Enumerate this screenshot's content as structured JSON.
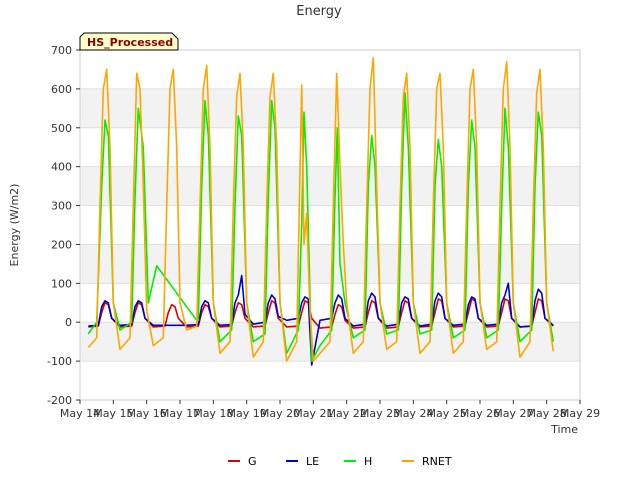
{
  "chart_data": {
    "type": "line",
    "title": "Energy",
    "xlabel": "Time",
    "ylabel": "Energy (W/m2)",
    "badge": "HS_Processed",
    "xlim": [
      14,
      29
    ],
    "ylim": [
      -200,
      700
    ],
    "x_ticks": [
      14,
      15,
      16,
      17,
      18,
      19,
      20,
      21,
      22,
      23,
      24,
      25,
      26,
      27,
      28,
      29
    ],
    "x_tick_labels": [
      "May 14",
      "May 15",
      "May 16",
      "May 17",
      "May 18",
      "May 19",
      "May 20",
      "May 21",
      "May 22",
      "May 23",
      "May 24",
      "May 25",
      "May 26",
      "May 27",
      "May 28",
      "May 29"
    ],
    "y_ticks": [
      -200,
      -100,
      0,
      100,
      200,
      300,
      400,
      500,
      600,
      700
    ],
    "y_tick_labels": [
      "-200",
      "-100",
      "0",
      "100",
      "200",
      "300",
      "400",
      "500",
      "600",
      "700"
    ],
    "legend_position": "bottom-center",
    "series": [
      {
        "name": "G",
        "color": "#dd0000",
        "x": [
          14.25,
          14.55,
          14.65,
          14.75,
          14.85,
          14.95,
          15.2,
          15.55,
          15.65,
          15.75,
          15.85,
          15.95,
          16.2,
          16.55,
          16.65,
          16.75,
          16.85,
          16.95,
          17.2,
          17.55,
          17.65,
          17.75,
          17.85,
          17.95,
          18.2,
          18.55,
          18.65,
          18.75,
          18.85,
          18.95,
          19.2,
          19.55,
          19.65,
          19.75,
          19.85,
          19.95,
          20.2,
          20.55,
          20.65,
          20.75,
          20.85,
          20.95,
          21.2,
          21.55,
          21.65,
          21.75,
          21.85,
          21.95,
          22.2,
          22.55,
          22.65,
          22.75,
          22.85,
          22.95,
          23.2,
          23.55,
          23.65,
          23.75,
          23.85,
          23.95,
          24.2,
          24.55,
          24.65,
          24.75,
          24.85,
          24.95,
          25.2,
          25.55,
          25.65,
          25.75,
          25.85,
          25.95,
          26.2,
          26.55,
          26.65,
          26.75,
          26.85,
          26.95,
          27.2,
          27.55,
          27.65,
          27.75,
          27.85,
          27.95,
          28.2
        ],
        "y": [
          -12,
          -10,
          25,
          50,
          45,
          10,
          -12,
          -10,
          25,
          50,
          45,
          10,
          -12,
          -10,
          25,
          45,
          40,
          10,
          -12,
          -10,
          25,
          45,
          40,
          10,
          -12,
          -10,
          25,
          50,
          45,
          10,
          -12,
          -10,
          25,
          55,
          50,
          10,
          -12,
          -10,
          25,
          55,
          50,
          10,
          -15,
          -12,
          20,
          45,
          40,
          5,
          -15,
          -12,
          25,
          55,
          50,
          10,
          -15,
          -12,
          25,
          55,
          50,
          10,
          -12,
          -10,
          25,
          60,
          55,
          10,
          -12,
          -10,
          25,
          60,
          55,
          10,
          -12,
          -10,
          25,
          60,
          55,
          10,
          -12,
          -10,
          25,
          60,
          55,
          10,
          -10
        ]
      },
      {
        "name": "LE",
        "color": "#0000cc",
        "x": [
          14.25,
          14.55,
          14.65,
          14.75,
          14.85,
          14.95,
          15.2,
          15.55,
          15.65,
          15.75,
          15.85,
          15.95,
          16.2,
          16.55,
          16.95,
          17.2,
          17.55,
          17.65,
          17.75,
          17.85,
          17.95,
          18.2,
          18.55,
          18.65,
          18.75,
          18.85,
          18.95,
          19.2,
          19.55,
          19.65,
          19.75,
          19.85,
          19.95,
          20.2,
          20.55,
          20.65,
          20.75,
          20.85,
          20.95,
          21.2,
          21.55,
          21.65,
          21.75,
          21.85,
          21.95,
          22.2,
          22.55,
          22.65,
          22.75,
          22.85,
          22.95,
          23.2,
          23.55,
          23.65,
          23.75,
          23.85,
          23.95,
          24.2,
          24.55,
          24.65,
          24.75,
          24.85,
          24.95,
          25.2,
          25.55,
          25.65,
          25.75,
          25.85,
          25.95,
          26.2,
          26.55,
          26.65,
          26.75,
          26.85,
          26.95,
          27.2,
          27.55,
          27.65,
          27.75,
          27.85,
          27.95,
          28.2
        ],
        "y": [
          -10,
          -8,
          40,
          55,
          50,
          10,
          -8,
          -6,
          40,
          55,
          50,
          10,
          -8,
          -8,
          -8,
          -8,
          -6,
          40,
          55,
          50,
          10,
          -8,
          -6,
          50,
          70,
          120,
          20,
          -5,
          0,
          50,
          70,
          60,
          15,
          5,
          10,
          50,
          65,
          60,
          -110,
          5,
          10,
          50,
          70,
          60,
          10,
          -10,
          -5,
          55,
          75,
          65,
          10,
          -10,
          -5,
          50,
          65,
          60,
          10,
          -10,
          -5,
          55,
          75,
          65,
          10,
          -8,
          -5,
          45,
          65,
          60,
          10,
          -8,
          -5,
          50,
          70,
          100,
          10,
          -12,
          -10,
          55,
          85,
          75,
          10,
          -8
        ]
      },
      {
        "name": "H",
        "color": "#00ee00",
        "x": [
          14.25,
          14.5,
          14.65,
          14.75,
          14.85,
          15.0,
          15.2,
          15.55,
          15.65,
          15.75,
          15.9,
          16.05,
          16.3,
          17.5,
          17.55,
          17.65,
          17.75,
          17.85,
          18.0,
          18.2,
          18.55,
          18.65,
          18.75,
          18.85,
          19.0,
          19.2,
          19.55,
          19.65,
          19.75,
          19.85,
          20.0,
          20.2,
          20.55,
          20.65,
          20.72,
          20.8,
          20.95,
          21.2,
          21.55,
          21.65,
          21.72,
          21.8,
          21.95,
          22.2,
          22.55,
          22.65,
          22.75,
          22.85,
          23.0,
          23.2,
          23.55,
          23.65,
          23.75,
          23.85,
          24.0,
          24.2,
          24.55,
          24.65,
          24.75,
          24.85,
          25.0,
          25.2,
          25.55,
          25.65,
          25.75,
          25.85,
          26.0,
          26.2,
          26.55,
          26.65,
          26.75,
          26.85,
          27.0,
          27.2,
          27.55,
          27.65,
          27.75,
          27.85,
          28.0,
          28.2
        ],
        "y": [
          -30,
          0,
          350,
          520,
          480,
          50,
          -20,
          0,
          320,
          550,
          450,
          50,
          145,
          5,
          5,
          350,
          570,
          480,
          50,
          -50,
          -20,
          300,
          530,
          480,
          50,
          -50,
          -30,
          320,
          570,
          500,
          50,
          -80,
          -20,
          250,
          540,
          400,
          -100,
          -60,
          -20,
          320,
          500,
          150,
          50,
          -40,
          -20,
          350,
          480,
          400,
          50,
          -30,
          -20,
          350,
          590,
          450,
          50,
          -30,
          -20,
          350,
          470,
          400,
          50,
          -40,
          -20,
          350,
          520,
          450,
          50,
          -40,
          -20,
          300,
          550,
          450,
          50,
          -50,
          -20,
          350,
          540,
          480,
          50,
          -50
        ]
      },
      {
        "name": "RNET",
        "color": "#ffa500",
        "x": [
          14.25,
          14.5,
          14.6,
          14.7,
          14.8,
          14.9,
          15.0,
          15.2,
          15.5,
          15.6,
          15.7,
          15.8,
          15.9,
          16.0,
          16.2,
          16.5,
          16.6,
          16.7,
          16.8,
          16.9,
          17.0,
          17.2,
          17.5,
          17.6,
          17.7,
          17.8,
          17.9,
          18.0,
          18.2,
          18.5,
          18.6,
          18.7,
          18.8,
          18.9,
          19.0,
          19.2,
          19.5,
          19.6,
          19.7,
          19.8,
          19.9,
          20.0,
          20.2,
          20.5,
          20.58,
          20.65,
          20.72,
          20.8,
          20.9,
          21.0,
          21.2,
          21.5,
          21.6,
          21.7,
          21.8,
          21.9,
          22.0,
          22.2,
          22.5,
          22.6,
          22.7,
          22.8,
          22.9,
          23.0,
          23.2,
          23.5,
          23.6,
          23.7,
          23.8,
          23.9,
          24.0,
          24.2,
          24.5,
          24.6,
          24.7,
          24.8,
          24.9,
          25.0,
          25.2,
          25.5,
          25.6,
          25.7,
          25.8,
          25.9,
          26.0,
          26.2,
          26.5,
          26.6,
          26.7,
          26.8,
          26.9,
          27.0,
          27.2,
          27.5,
          27.6,
          27.7,
          27.8,
          27.9,
          28.0,
          28.2
        ],
        "y": [
          -65,
          -40,
          300,
          600,
          650,
          450,
          50,
          -70,
          -40,
          300,
          640,
          600,
          350,
          30,
          -60,
          -40,
          300,
          600,
          650,
          450,
          50,
          -20,
          -10,
          300,
          600,
          660,
          450,
          50,
          -80,
          -50,
          300,
          580,
          640,
          450,
          50,
          -90,
          -50,
          300,
          580,
          640,
          450,
          50,
          -100,
          -50,
          300,
          610,
          200,
          280,
          30,
          -100,
          -80,
          -50,
          300,
          640,
          400,
          200,
          50,
          -80,
          -50,
          300,
          600,
          680,
          350,
          50,
          -70,
          -50,
          300,
          580,
          640,
          450,
          50,
          -80,
          -50,
          300,
          600,
          640,
          450,
          50,
          -80,
          -50,
          300,
          600,
          650,
          450,
          50,
          -70,
          -50,
          300,
          600,
          670,
          450,
          50,
          -90,
          -50,
          300,
          590,
          650,
          450,
          50,
          -75
        ]
      }
    ]
  }
}
